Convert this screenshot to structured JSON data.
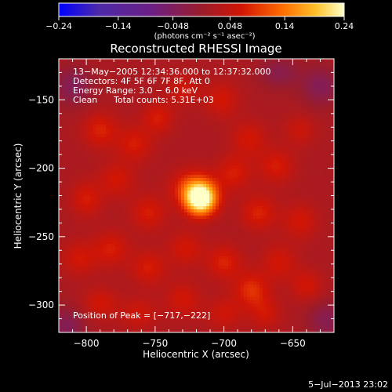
{
  "chart_data": {
    "type": "heatmap",
    "title": "Reconstructed RHESSI Image",
    "xlabel": "Heliocentric X (arcsec)",
    "ylabel": "Heliocentric Y (arcsec)",
    "xlim": [
      -820,
      -620
    ],
    "ylim": [
      -320,
      -120
    ],
    "x_ticks": [
      -800,
      -750,
      -700,
      -650
    ],
    "y_ticks": [
      -300,
      -250,
      -200,
      -150
    ],
    "x_tick_labels": [
      "−800",
      "−750",
      "−700",
      "−650"
    ],
    "y_tick_labels": [
      "−300",
      "−250",
      "−200",
      "−150"
    ],
    "colorbar": {
      "range": [
        -0.24,
        0.24
      ],
      "ticks": [
        -0.24,
        -0.14,
        -0.048,
        0.048,
        0.14,
        0.24
      ],
      "tick_labels": [
        "−0.24",
        "−0.14",
        "−0.048",
        "0.048",
        "0.14",
        "0.24"
      ],
      "units_label": "(photons cm⁻² s⁻¹ asec⁻²)",
      "colors": [
        "#0000ff",
        "#4d2aa8",
        "#6b1f86",
        "#9b1c2a",
        "#d11505",
        "#ff6a00",
        "#ffc02a",
        "#ffffc8"
      ]
    },
    "annotations": {
      "time_range": "13−May−2005 12:34:36.000 to 12:37:32.000",
      "detectors": "Detectors: 4F 5F 6F 7F 8F, Att 0",
      "energy": "Energy Range: 3.0 − 6.0 keV",
      "clean": "Clean",
      "counts": "Total counts: 5.31E+03",
      "peak": "Position of Peak = [−717,−222]"
    },
    "peak": {
      "x": -717,
      "y": -222
    },
    "blobs": [
      {
        "x": -717,
        "y": -222,
        "sx": 8,
        "sy": 8,
        "v": 0.26
      },
      {
        "x": -723,
        "y": -213,
        "sx": 11,
        "sy": 9,
        "v": 0.08
      },
      {
        "x": -790,
        "y": -172,
        "sx": 9,
        "sy": 9,
        "v": 0.06
      },
      {
        "x": -765,
        "y": -182,
        "sx": 9,
        "sy": 9,
        "v": 0.055
      },
      {
        "x": -748,
        "y": -163,
        "sx": 8,
        "sy": 8,
        "v": 0.055
      },
      {
        "x": -730,
        "y": -142,
        "sx": 8,
        "sy": 8,
        "v": 0.045
      },
      {
        "x": -702,
        "y": -150,
        "sx": 9,
        "sy": 9,
        "v": 0.05
      },
      {
        "x": -682,
        "y": -178,
        "sx": 9,
        "sy": 9,
        "v": 0.05
      },
      {
        "x": -662,
        "y": -198,
        "sx": 9,
        "sy": 9,
        "v": 0.055
      },
      {
        "x": -645,
        "y": -172,
        "sx": 8,
        "sy": 8,
        "v": 0.04
      },
      {
        "x": -800,
        "y": -222,
        "sx": 8,
        "sy": 9,
        "v": 0.055
      },
      {
        "x": -778,
        "y": -208,
        "sx": 9,
        "sy": 9,
        "v": 0.05
      },
      {
        "x": -755,
        "y": -232,
        "sx": 9,
        "sy": 9,
        "v": 0.055
      },
      {
        "x": -693,
        "y": -203,
        "sx": 9,
        "sy": 9,
        "v": 0.055
      },
      {
        "x": -675,
        "y": -232,
        "sx": 9,
        "sy": 9,
        "v": 0.06
      },
      {
        "x": -645,
        "y": -238,
        "sx": 9,
        "sy": 9,
        "v": 0.05
      },
      {
        "x": -805,
        "y": -265,
        "sx": 9,
        "sy": 9,
        "v": 0.05
      },
      {
        "x": -782,
        "y": -258,
        "sx": 9,
        "sy": 9,
        "v": 0.055
      },
      {
        "x": -755,
        "y": -272,
        "sx": 9,
        "sy": 9,
        "v": 0.055
      },
      {
        "x": -728,
        "y": -258,
        "sx": 9,
        "sy": 9,
        "v": 0.05
      },
      {
        "x": -700,
        "y": -268,
        "sx": 9,
        "sy": 9,
        "v": 0.06
      },
      {
        "x": -680,
        "y": -288,
        "sx": 9,
        "sy": 9,
        "v": 0.07
      },
      {
        "x": -660,
        "y": -268,
        "sx": 9,
        "sy": 9,
        "v": 0.05
      },
      {
        "x": -640,
        "y": -285,
        "sx": 8,
        "sy": 8,
        "v": 0.05
      },
      {
        "x": -790,
        "y": -298,
        "sx": 9,
        "sy": 8,
        "v": 0.05
      },
      {
        "x": -762,
        "y": -305,
        "sx": 9,
        "sy": 8,
        "v": 0.045
      },
      {
        "x": -730,
        "y": -295,
        "sx": 9,
        "sy": 9,
        "v": 0.05
      },
      {
        "x": -700,
        "y": -305,
        "sx": 9,
        "sy": 8,
        "v": 0.045
      },
      {
        "x": -670,
        "y": -305,
        "sx": 8,
        "sy": 8,
        "v": 0.045
      },
      {
        "x": -810,
        "y": -140,
        "sx": 10,
        "sy": 10,
        "v": -0.06
      },
      {
        "x": -630,
        "y": -140,
        "sx": 10,
        "sy": 10,
        "v": -0.06
      },
      {
        "x": -815,
        "y": -315,
        "sx": 10,
        "sy": 10,
        "v": -0.06
      },
      {
        "x": -625,
        "y": -310,
        "sx": 10,
        "sy": 10,
        "v": -0.055
      },
      {
        "x": -660,
        "y": -130,
        "sx": 10,
        "sy": 8,
        "v": -0.05
      }
    ],
    "base_level": 0.018
  },
  "footer": {
    "timestamp": "5−Jul−2013 23:02"
  }
}
